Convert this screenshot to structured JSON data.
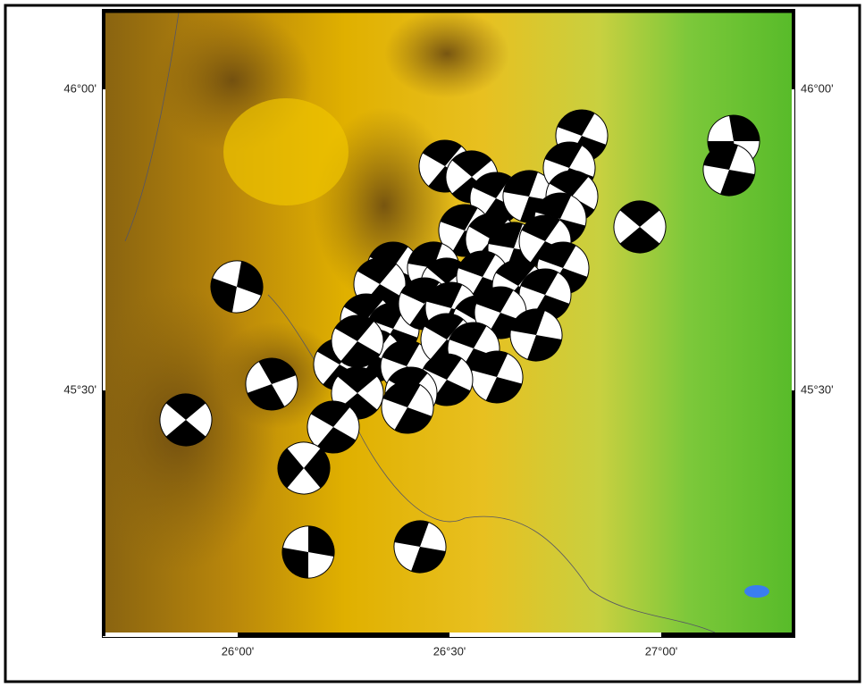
{
  "map": {
    "lat_ticks": [
      "46°00'",
      "45°30'"
    ],
    "lon_ticks": [
      "26°00'",
      "26°30'",
      "27°00'"
    ]
  }
}
